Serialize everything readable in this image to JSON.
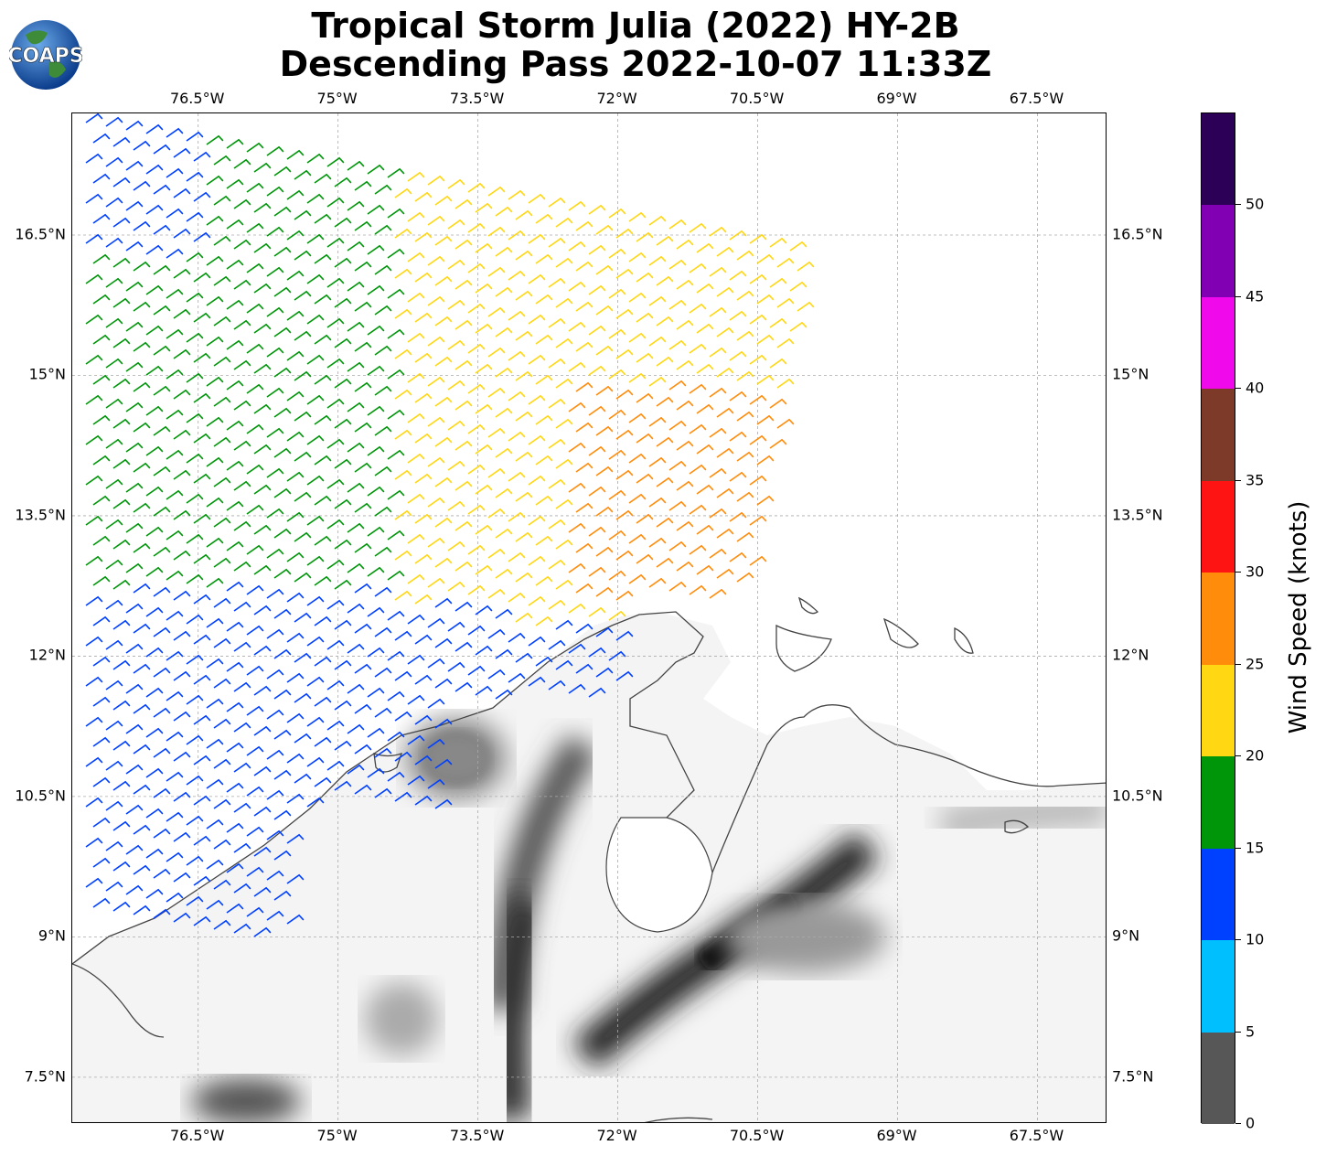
{
  "header": {
    "title_line1": "Tropical Storm Julia (2022) HY-2B",
    "title_line2": "Descending Pass 2022-10-07 11:33Z",
    "logo_text": "COAPS"
  },
  "map": {
    "lon_ticks": [
      "76.5°W",
      "75°W",
      "73.5°W",
      "72°W",
      "70.5°W",
      "69°W",
      "67.5°W"
    ],
    "lon_values": [
      -76.5,
      -75,
      -73.5,
      -72,
      -70.5,
      -69,
      -67.5
    ],
    "lat_ticks": [
      "16.5°N",
      "15°N",
      "13.5°N",
      "12°N",
      "10.5°N",
      "9°N",
      "7.5°N"
    ],
    "lat_values": [
      16.5,
      15,
      13.5,
      12,
      10.5,
      9,
      7.5
    ],
    "lon_range": [
      -77.85,
      -66.75
    ],
    "lat_range": [
      7.0,
      17.8
    ],
    "gridlines": true,
    "background": "grayscale terrain elevation",
    "barb_type": "wind barbs"
  },
  "colorbar": {
    "label": "Wind Speed (knots)",
    "ticks": [
      "0",
      "5",
      "10",
      "15",
      "20",
      "25",
      "30",
      "35",
      "40",
      "45",
      "50"
    ],
    "range": [
      0,
      55
    ],
    "bins": [
      {
        "min": 0,
        "max": 5,
        "color": "#575757"
      },
      {
        "min": 5,
        "max": 10,
        "color": "#00bfff"
      },
      {
        "min": 10,
        "max": 15,
        "color": "#0040ff"
      },
      {
        "min": 15,
        "max": 20,
        "color": "#00960a"
      },
      {
        "min": 20,
        "max": 25,
        "color": "#ffd712"
      },
      {
        "min": 25,
        "max": 30,
        "color": "#ff8c0a"
      },
      {
        "min": 30,
        "max": 35,
        "color": "#ff1414"
      },
      {
        "min": 35,
        "max": 40,
        "color": "#7d3a28"
      },
      {
        "min": 40,
        "max": 45,
        "color": "#f00aeb"
      },
      {
        "min": 45,
        "max": 50,
        "color": "#8200b4"
      },
      {
        "min": 50,
        "max": 55,
        "color": "#2d0058"
      }
    ]
  }
}
